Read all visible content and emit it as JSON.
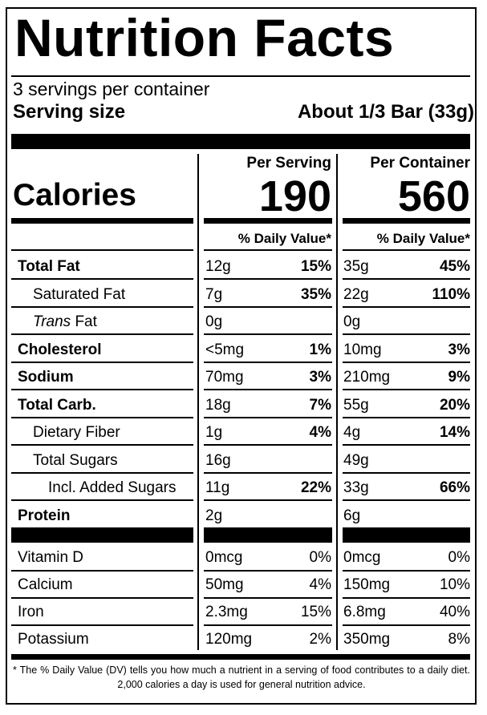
{
  "title": "Nutrition Facts",
  "servings_per_container": "3 servings per container",
  "serving_size_label": "Serving size",
  "serving_size_value": "About 1/3 Bar (33g)",
  "columns": {
    "per_serving": "Per Serving",
    "per_container": "Per Container"
  },
  "calories": {
    "label": "Calories",
    "per_serving": "190",
    "per_container": "560"
  },
  "daily_value_heading": "% Daily Value*",
  "nutrients": [
    {
      "name": "Total Fat",
      "serving_amount": "12g",
      "serving_dv": "15%",
      "container_amount": "35g",
      "container_dv": "45%"
    },
    {
      "name": "Saturated Fat",
      "serving_amount": "7g",
      "serving_dv": "35%",
      "container_amount": "22g",
      "container_dv": "110%"
    },
    {
      "name_italic": "Trans",
      "name_rest": " Fat",
      "serving_amount": "0g",
      "serving_dv": "",
      "container_amount": "0g",
      "container_dv": ""
    },
    {
      "name": "Cholesterol",
      "serving_amount": "<5mg",
      "serving_dv": "1%",
      "container_amount": "10mg",
      "container_dv": "3%"
    },
    {
      "name": "Sodium",
      "serving_amount": "70mg",
      "serving_dv": "3%",
      "container_amount": "210mg",
      "container_dv": "9%"
    },
    {
      "name": "Total Carb.",
      "serving_amount": "18g",
      "serving_dv": "7%",
      "container_amount": "55g",
      "container_dv": "20%"
    },
    {
      "name": "Dietary Fiber",
      "serving_amount": "1g",
      "serving_dv": "4%",
      "container_amount": "4g",
      "container_dv": "14%"
    },
    {
      "name": "Total Sugars",
      "serving_amount": "16g",
      "serving_dv": "",
      "container_amount": "49g",
      "container_dv": ""
    },
    {
      "name": "Incl. Added Sugars",
      "serving_amount": "11g",
      "serving_dv": "22%",
      "container_amount": "33g",
      "container_dv": "66%"
    },
    {
      "name": "Protein",
      "serving_amount": "2g",
      "serving_dv": "",
      "container_amount": "6g",
      "container_dv": ""
    }
  ],
  "vitamins": [
    {
      "name": "Vitamin D",
      "serving_amount": "0mcg",
      "serving_dv": "0%",
      "container_amount": "0mcg",
      "container_dv": "0%"
    },
    {
      "name": "Calcium",
      "serving_amount": "50mg",
      "serving_dv": "4%",
      "container_amount": "150mg",
      "container_dv": "10%"
    },
    {
      "name": "Iron",
      "serving_amount": "2.3mg",
      "serving_dv": "15%",
      "container_amount": "6.8mg",
      "container_dv": "40%"
    },
    {
      "name": "Potassium",
      "serving_amount": "120mg",
      "serving_dv": "2%",
      "container_amount": "350mg",
      "container_dv": "8%"
    }
  ],
  "footnote": "* The % Daily Value (DV) tells you how much a nutrient in a serving of food contributes to a daily diet. 2,000 calories a day is used for general nutrition advice."
}
